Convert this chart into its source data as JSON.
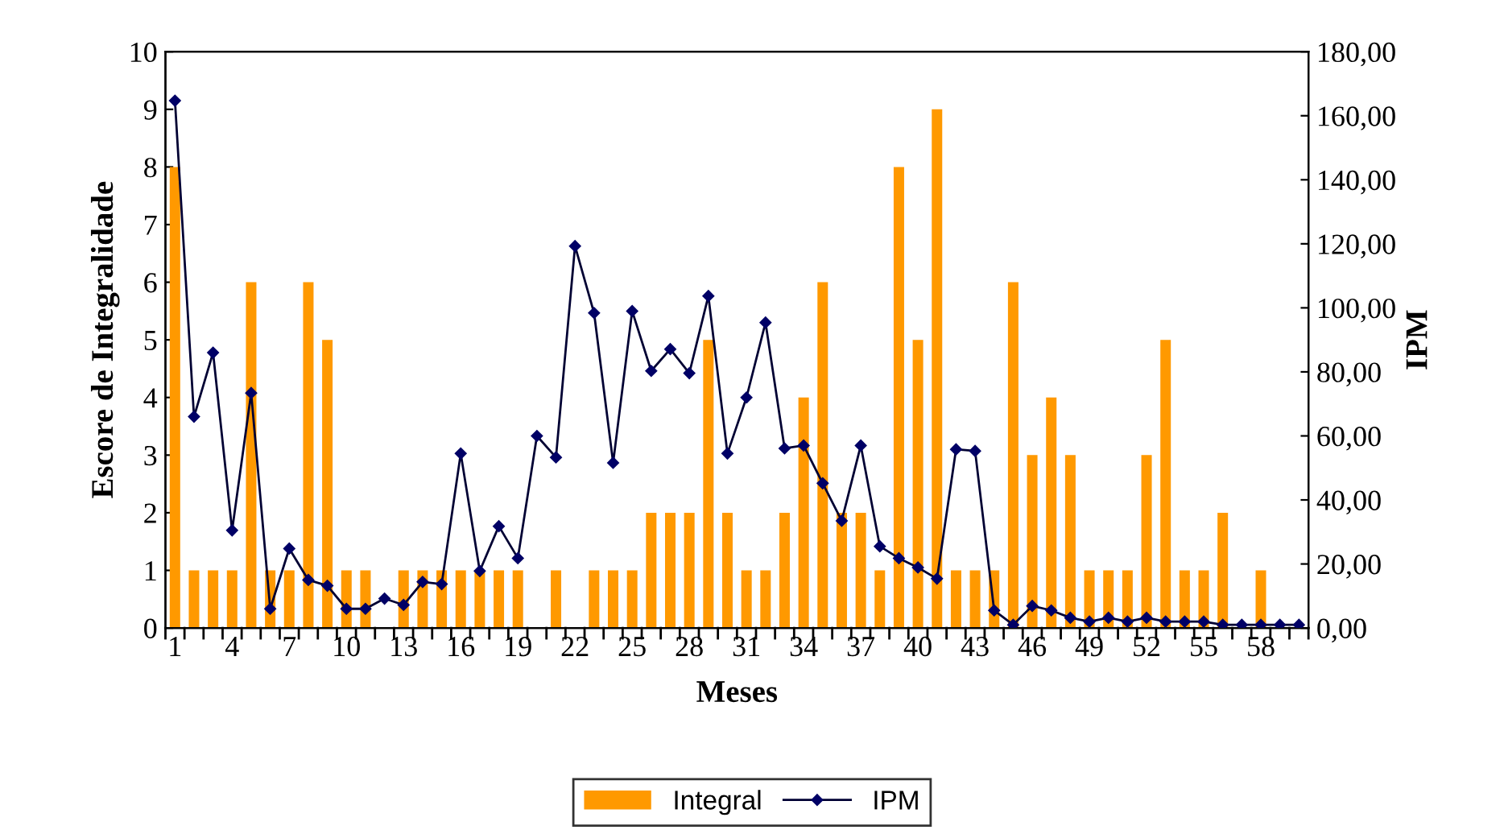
{
  "chart_data": {
    "type": "bar",
    "xlabel": "Meses",
    "ylabel": "Escore de Integralidade",
    "y2label": "IPM",
    "categories": [
      "1",
      null,
      null,
      "4",
      null,
      null,
      "7",
      null,
      null,
      "10",
      null,
      null,
      "13",
      null,
      null,
      "16",
      null,
      null,
      "19",
      null,
      null,
      "22",
      null,
      null,
      "25",
      null,
      null,
      "28",
      null,
      null,
      "31",
      null,
      null,
      "34",
      null,
      null,
      "37",
      null,
      null,
      "40",
      null,
      null,
      "43",
      null,
      null,
      "46",
      null,
      null,
      "49",
      null,
      null,
      "52",
      null,
      null,
      "55",
      null,
      null,
      "58",
      null,
      null
    ],
    "series": [
      {
        "name": "Integral",
        "color": "#ff9900",
        "values": [
          8,
          1,
          1,
          1,
          6,
          1,
          1,
          6,
          5,
          1,
          1,
          0,
          1,
          1,
          1,
          1,
          1,
          1,
          1,
          0,
          1,
          0,
          1,
          1,
          1,
          2,
          2,
          2,
          5,
          2,
          1,
          1,
          2,
          4,
          6,
          2,
          2,
          1,
          8,
          5,
          9,
          1,
          1,
          1,
          6,
          3,
          4,
          3,
          1,
          1,
          1,
          3,
          5,
          1,
          1,
          2,
          0,
          1,
          0,
          0
        ]
      },
      {
        "name": "IPM",
        "type": "line",
        "axis": "y2",
        "color": "#000033",
        "marker": "diamond",
        "line_style": "solid",
        "values": [
          164.7,
          66,
          86,
          30.5,
          73.4,
          6,
          24.8,
          15,
          13.2,
          6,
          6,
          9.2,
          7.2,
          14.4,
          13.7,
          54.5,
          17.8,
          31.8,
          21.8,
          60,
          53.3,
          119.3,
          98.4,
          51.6,
          99,
          80.3,
          87.1,
          79.6,
          103.7,
          54.5,
          72,
          95.4,
          56.1,
          57,
          45.2,
          33.5,
          57,
          25.5,
          21.8,
          18.9,
          15.4,
          55.8,
          55.3,
          5.5,
          1,
          6.9,
          5.5,
          3.2,
          2,
          3.2,
          2,
          3.2,
          2,
          2,
          2,
          1,
          1,
          1,
          1,
          1
        ]
      }
    ],
    "ylim": [
      0,
      10
    ],
    "yticks": [
      0,
      1,
      2,
      3,
      4,
      5,
      6,
      7,
      8,
      9,
      10
    ],
    "y2lim": [
      0,
      180
    ],
    "y2ticks": [
      {
        "value": 0,
        "label": "0,00"
      },
      {
        "value": 20,
        "label": "20,00"
      },
      {
        "value": 40,
        "label": "40,00"
      },
      {
        "value": 60,
        "label": "60,00"
      },
      {
        "value": 80,
        "label": "80,00"
      },
      {
        "value": 100,
        "label": "100,00"
      },
      {
        "value": 120,
        "label": "120,00"
      },
      {
        "value": 140,
        "label": "140,00"
      },
      {
        "value": 160,
        "label": "160,00"
      },
      {
        "value": 180,
        "label": "180,00"
      }
    ],
    "grid": false,
    "legend": "bottom"
  }
}
